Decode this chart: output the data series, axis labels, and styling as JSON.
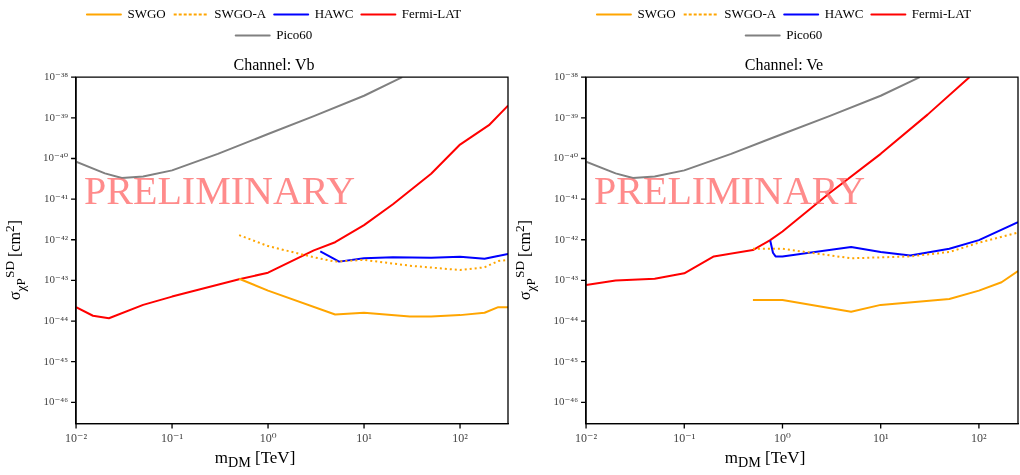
{
  "chart_data": [
    {
      "type": "line",
      "title": "Channel: Vb",
      "xlabel": "m$_{DM}$ [TeV]",
      "ylabel": "σ$_{χP}$$^{SD}$ [cm$^{2}$]",
      "log": "xy",
      "grid": false,
      "legend": "top",
      "annotations": [
        "PRELIMINARY"
      ],
      "xlim": [
        0.01,
        316
      ],
      "ylim": [
        3e-47,
        1e-38
      ],
      "xticks": [
        {
          "value": 0.01,
          "label": "10⁻²"
        },
        {
          "value": 0.1,
          "label": "10⁻¹"
        },
        {
          "value": 1,
          "label": "10⁰"
        },
        {
          "value": 10,
          "label": "10¹"
        },
        {
          "value": 100,
          "label": "10²"
        }
      ],
      "yticks": [
        {
          "value": 1e-46,
          "label": "10⁻⁴⁶"
        },
        {
          "value": 1e-45,
          "label": "10⁻⁴⁵"
        },
        {
          "value": 1e-44,
          "label": "10⁻⁴⁴"
        },
        {
          "value": 1e-43,
          "label": "10⁻⁴³"
        },
        {
          "value": 1e-42,
          "label": "10⁻⁴²"
        },
        {
          "value": 1e-41,
          "label": "10⁻⁴¹"
        },
        {
          "value": 1e-40,
          "label": "10⁻⁴⁰"
        },
        {
          "value": 1e-39,
          "label": "10⁻³⁹"
        },
        {
          "value": 1e-38,
          "label": "10⁻³⁸"
        }
      ],
      "series": [
        {
          "name": "SWGO",
          "color": "#ffa500",
          "line_style": "solid",
          "x": [
            0.5,
            1,
            5,
            10,
            30,
            50,
            100,
            180,
            250,
            316
          ],
          "values": [
            1.1e-43,
            5.6e-44,
            1.45e-44,
            1.6e-44,
            1.3e-44,
            1.3e-44,
            1.4e-44,
            1.6e-44,
            2.2e-44,
            2.2e-44
          ]
        },
        {
          "name": "SWGO-A",
          "color": "#ffa500",
          "line_style": "dotted",
          "x": [
            0.5,
            1,
            3,
            5,
            10,
            30,
            100,
            180,
            250,
            316
          ],
          "values": [
            1.3e-42,
            7e-43,
            3.7e-43,
            2.9e-43,
            3.2e-43,
            2.3e-43,
            1.8e-43,
            2.1e-43,
            3e-43,
            3.2e-43
          ]
        },
        {
          "name": "HAWC",
          "color": "#0000ff",
          "line_style": "solid",
          "x": [
            3.5,
            5.5,
            10,
            20,
            50,
            100,
            180,
            316
          ],
          "values": [
            5.2e-43,
            2.9e-43,
            3.5e-43,
            3.7e-43,
            3.6e-43,
            3.8e-43,
            3.4e-43,
            4.5e-43
          ]
        },
        {
          "name": "Fermi-LAT",
          "color": "#ff0000",
          "line_style": "solid",
          "x": [
            0.01,
            0.015,
            0.022,
            0.05,
            0.1,
            0.5,
            1,
            3,
            5,
            10,
            20,
            50,
            100,
            200,
            316
          ],
          "values": [
            2.2e-44,
            1.35e-44,
            1.17e-44,
            2.5e-44,
            4e-44,
            1.07e-43,
            1.55e-43,
            5.5e-43,
            8.7e-43,
            2.3e-42,
            7.5e-42,
            4.2e-41,
            2.2e-40,
            6.6e-40,
            2e-39
          ]
        },
        {
          "name": "Pico60",
          "color": "#808080",
          "line_style": "solid",
          "x": [
            0.01,
            0.02,
            0.03,
            0.05,
            0.1,
            0.3,
            1,
            3,
            10,
            25
          ],
          "values": [
            8.3e-41,
            4.3e-41,
            3.3e-41,
            3.6e-41,
            5.1e-41,
            1.3e-40,
            4e-40,
            1.1e-39,
            3.5e-39,
            1e-38
          ]
        }
      ]
    },
    {
      "type": "line",
      "title": "Channel: Ve",
      "xlabel": "m$_{DM}$ [TeV]",
      "ylabel": "σ$_{χP}$$^{SD}$ [cm$^{2}$]",
      "log": "xy",
      "grid": false,
      "legend": "top",
      "annotations": [
        "PRELIMINARY"
      ],
      "xlim": [
        0.01,
        250
      ],
      "ylim": [
        3e-47,
        1e-38
      ],
      "xticks": [
        {
          "value": 0.01,
          "label": "10⁻²"
        },
        {
          "value": 0.1,
          "label": "10⁻¹"
        },
        {
          "value": 1,
          "label": "10⁰"
        },
        {
          "value": 10,
          "label": "10¹"
        },
        {
          "value": 100,
          "label": "10²"
        }
      ],
      "yticks": [
        {
          "value": 1e-46,
          "label": "10⁻⁴⁶"
        },
        {
          "value": 1e-45,
          "label": "10⁻⁴⁵"
        },
        {
          "value": 1e-44,
          "label": "10⁻⁴⁴"
        },
        {
          "value": 1e-43,
          "label": "10⁻⁴³"
        },
        {
          "value": 1e-42,
          "label": "10⁻⁴²"
        },
        {
          "value": 1e-41,
          "label": "10⁻⁴¹"
        },
        {
          "value": 1e-40,
          "label": "10⁻⁴⁰"
        },
        {
          "value": 1e-39,
          "label": "10⁻³⁹"
        },
        {
          "value": 1e-38,
          "label": "10⁻³⁸"
        }
      ],
      "series": [
        {
          "name": "SWGO",
          "color": "#ffa500",
          "line_style": "solid",
          "x": [
            0.5,
            1,
            5,
            10,
            50,
            100,
            170,
            250
          ],
          "values": [
            3.3e-44,
            3.3e-44,
            1.7e-44,
            2.5e-44,
            3.5e-44,
            5.6e-44,
            9e-44,
            1.7e-43
          ]
        },
        {
          "name": "SWGO-A",
          "color": "#ffa500",
          "line_style": "dotted",
          "x": [
            0.5,
            1,
            5,
            20,
            50,
            100,
            250
          ],
          "values": [
            6e-43,
            6e-43,
            3.5e-43,
            3.9e-43,
            5e-43,
            8.5e-43,
            1.5e-42
          ]
        },
        {
          "name": "HAWC",
          "color": "#0000ff",
          "line_style": "solid",
          "x": [
            0.75,
            0.8,
            0.85,
            1,
            5,
            10,
            20,
            50,
            100,
            250
          ],
          "values": [
            9.6e-43,
            4.8e-43,
            3.9e-43,
            3.9e-43,
            6.6e-43,
            5e-43,
            4.1e-43,
            6e-43,
            9.8e-43,
            2.7e-42
          ]
        },
        {
          "name": "Fermi-LAT",
          "color": "#ff0000",
          "line_style": "solid",
          "x": [
            0.01,
            0.02,
            0.05,
            0.1,
            0.2,
            0.5,
            0.75,
            1,
            3,
            10,
            30,
            80
          ],
          "values": [
            7.7e-44,
            1e-43,
            1.1e-43,
            1.5e-43,
            3.9e-43,
            5.6e-43,
            9.8e-43,
            1.6e-42,
            1.4e-41,
            1.3e-40,
            1.2e-39,
            1e-38
          ]
        },
        {
          "name": "Pico60",
          "color": "#808080",
          "line_style": "solid",
          "x": [
            0.01,
            0.02,
            0.03,
            0.05,
            0.1,
            0.3,
            1,
            3,
            10,
            25
          ],
          "values": [
            8.3e-41,
            4.3e-41,
            3.3e-41,
            3.6e-41,
            5.1e-41,
            1.3e-40,
            4e-40,
            1.1e-39,
            3.5e-39,
            1e-38
          ]
        }
      ]
    }
  ]
}
